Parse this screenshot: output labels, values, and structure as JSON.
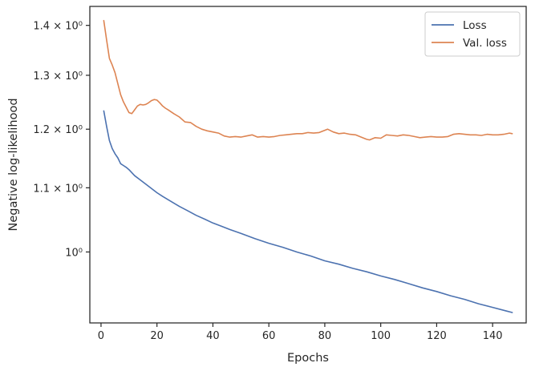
{
  "chart_data": {
    "type": "line",
    "xlabel": "Epochs",
    "ylabel": "Negative log-likelihood",
    "xlim": [
      -4,
      152
    ],
    "ylim": [
      0.9,
      1.44
    ],
    "yscale": "log",
    "grid": false,
    "legend_position": "top-right",
    "x_ticks": [
      0,
      20,
      40,
      60,
      80,
      100,
      120,
      140
    ],
    "y_ticks": [
      {
        "value": 1.0,
        "label": "10⁰"
      },
      {
        "value": 1.1,
        "label": "1.1 × 10⁰"
      },
      {
        "value": 1.2,
        "label": "1.2 × 10⁰"
      },
      {
        "value": 1.3,
        "label": "1.3 × 10⁰"
      },
      {
        "value": 1.4,
        "label": "1.4 × 10⁰"
      }
    ],
    "series": [
      {
        "name": "Loss",
        "color": "#4c72b0",
        "x": [
          1,
          2,
          3,
          4,
          5,
          6,
          7,
          8,
          9,
          10,
          12,
          14,
          16,
          18,
          20,
          22,
          25,
          28,
          31,
          34,
          37,
          40,
          43,
          46,
          50,
          55,
          60,
          65,
          70,
          75,
          80,
          85,
          90,
          95,
          100,
          105,
          110,
          115,
          120,
          125,
          130,
          135,
          140,
          145,
          147
        ],
        "y": [
          1.233,
          1.205,
          1.18,
          1.166,
          1.157,
          1.15,
          1.14,
          1.137,
          1.134,
          1.13,
          1.12,
          1.113,
          1.106,
          1.099,
          1.092,
          1.086,
          1.078,
          1.07,
          1.063,
          1.056,
          1.05,
          1.044,
          1.039,
          1.034,
          1.028,
          1.02,
          1.013,
          1.007,
          1.0,
          0.994,
          0.987,
          0.982,
          0.976,
          0.971,
          0.965,
          0.96,
          0.954,
          0.948,
          0.943,
          0.937,
          0.932,
          0.926,
          0.921,
          0.916,
          0.914
        ]
      },
      {
        "name": "Val. loss",
        "color": "#dd8452",
        "x": [
          1,
          2,
          3,
          4,
          5,
          6,
          7,
          8,
          9,
          10,
          11,
          12,
          13,
          14,
          15,
          16,
          17,
          18,
          19,
          20,
          21,
          22,
          23,
          24,
          26,
          28,
          30,
          32,
          34,
          36,
          38,
          40,
          42,
          44,
          46,
          48,
          50,
          52,
          54,
          56,
          58,
          60,
          62,
          64,
          66,
          68,
          70,
          72,
          74,
          76,
          78,
          80,
          81,
          83,
          85,
          87,
          89,
          91,
          93,
          95,
          96,
          98,
          100,
          102,
          104,
          106,
          108,
          110,
          112,
          114,
          116,
          118,
          120,
          122,
          124,
          126,
          128,
          130,
          132,
          134,
          136,
          138,
          140,
          142,
          144,
          146,
          147
        ],
        "y": [
          1.41,
          1.37,
          1.333,
          1.32,
          1.305,
          1.284,
          1.263,
          1.25,
          1.24,
          1.23,
          1.228,
          1.235,
          1.242,
          1.245,
          1.244,
          1.245,
          1.248,
          1.252,
          1.254,
          1.253,
          1.248,
          1.242,
          1.238,
          1.235,
          1.228,
          1.222,
          1.213,
          1.212,
          1.205,
          1.2,
          1.197,
          1.195,
          1.193,
          1.188,
          1.186,
          1.187,
          1.186,
          1.188,
          1.19,
          1.186,
          1.187,
          1.186,
          1.187,
          1.189,
          1.19,
          1.191,
          1.192,
          1.192,
          1.194,
          1.193,
          1.194,
          1.198,
          1.2,
          1.195,
          1.192,
          1.193,
          1.191,
          1.19,
          1.186,
          1.182,
          1.181,
          1.185,
          1.184,
          1.19,
          1.189,
          1.188,
          1.19,
          1.189,
          1.187,
          1.185,
          1.186,
          1.187,
          1.186,
          1.186,
          1.187,
          1.191,
          1.192,
          1.191,
          1.19,
          1.19,
          1.189,
          1.191,
          1.19,
          1.19,
          1.191,
          1.193,
          1.192
        ]
      }
    ]
  }
}
